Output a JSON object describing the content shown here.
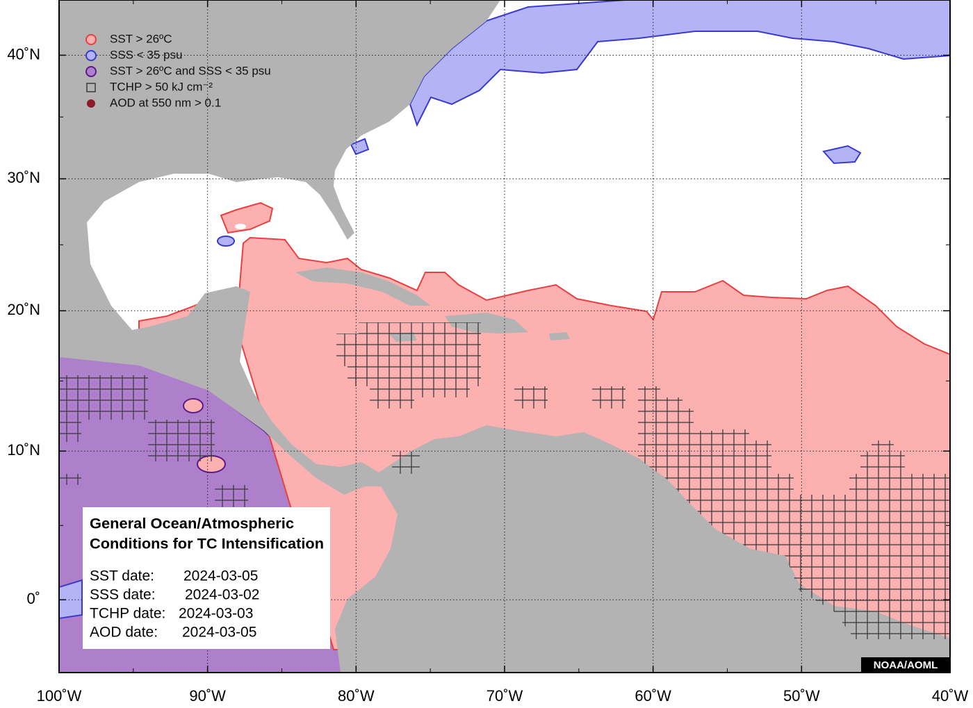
{
  "legend": [
    "SST > 26ºC",
    "SSS < 35 psu",
    "SST > 26ºC and SSS < 35 psu",
    "TCHP > 50 kJ cm⁻²",
    "AOD at 550 nm > 0.1"
  ],
  "info_box": {
    "title_lines": [
      "General Ocean/Atmospheric",
      "Conditions for TC Intensification"
    ],
    "dates": [
      {
        "label": "SST date:",
        "value": "2024-03-05"
      },
      {
        "label": "SSS date:",
        "value": "2024-03-02"
      },
      {
        "label": "TCHP date:",
        "value": "2024-03-03"
      },
      {
        "label": "AOD date:",
        "value": "2024-03-05"
      }
    ]
  },
  "axes": {
    "lon_range": [
      -100,
      -40
    ],
    "lat_range": [
      -4.7,
      44.7
    ],
    "lon_ticks": [
      {
        "value": -100,
        "label": "100˚W"
      },
      {
        "value": -90,
        "label": "90˚W"
      },
      {
        "value": -80,
        "label": "80˚W"
      },
      {
        "value": -70,
        "label": "70˚W"
      },
      {
        "value": -60,
        "label": "60˚W"
      },
      {
        "value": -50,
        "label": "50˚W"
      },
      {
        "value": -40,
        "label": "40˚W"
      }
    ],
    "lat_ticks": [
      {
        "value": 0,
        "label": "0˚"
      },
      {
        "value": 10,
        "label": "10˚N"
      },
      {
        "value": 20,
        "label": "20˚N"
      },
      {
        "value": 30,
        "label": "30˚N"
      },
      {
        "value": 40,
        "label": "40˚N"
      }
    ]
  },
  "credit": "NOAA/AOML"
}
